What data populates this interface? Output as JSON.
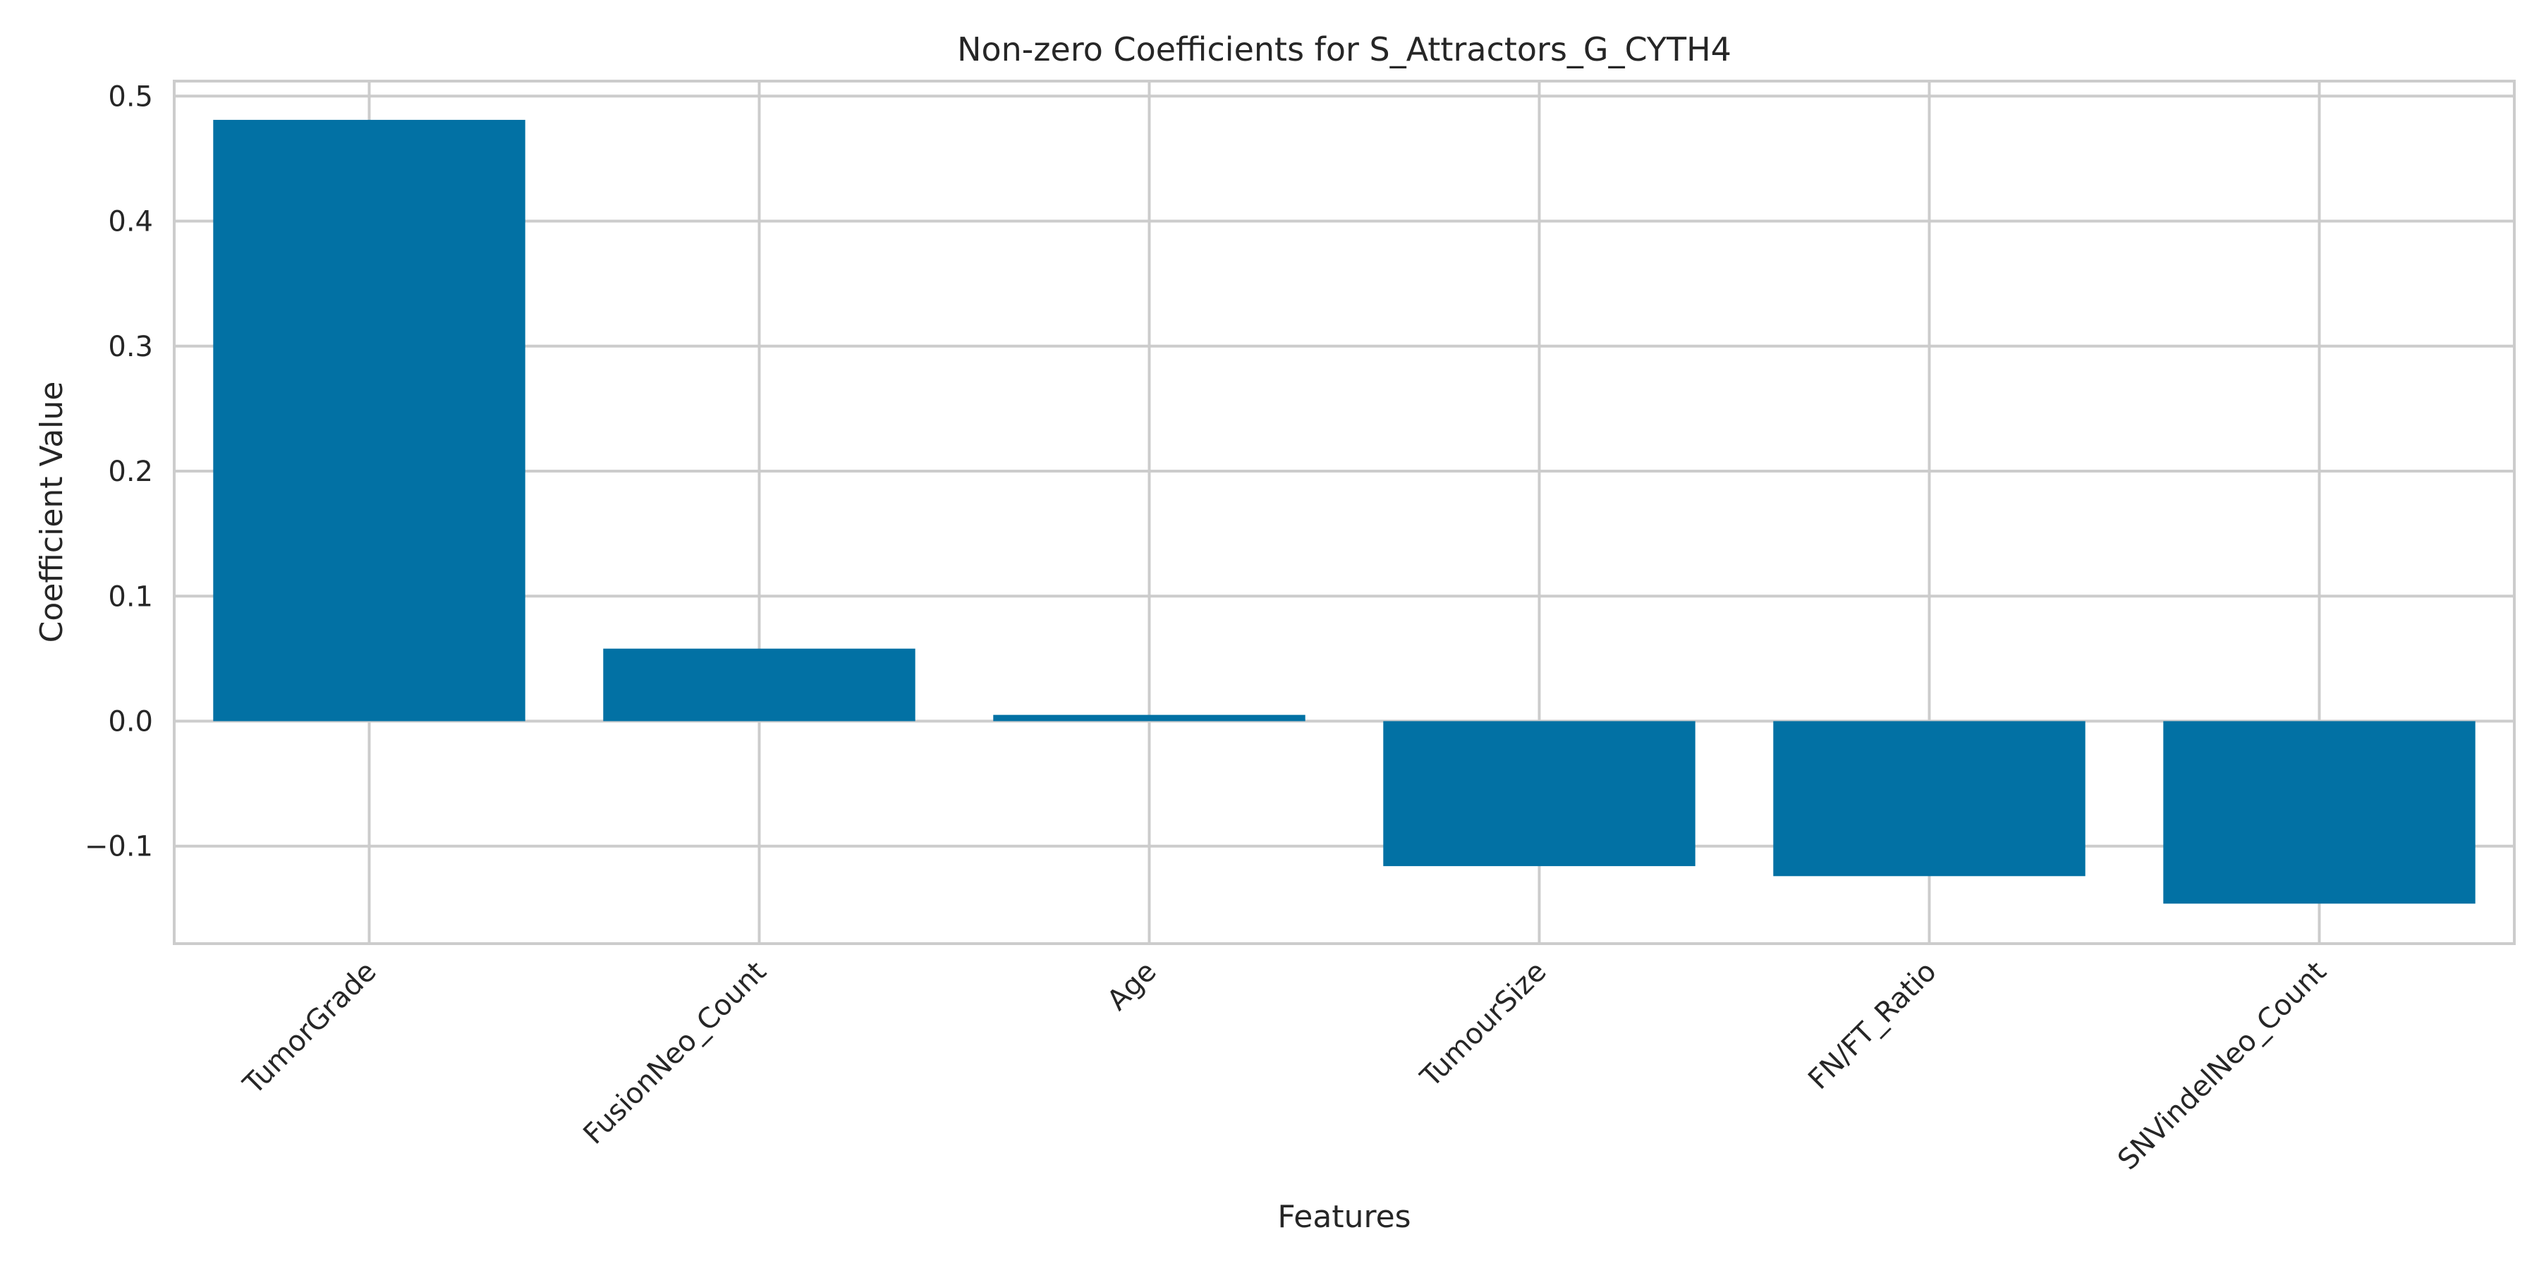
{
  "chart_data": {
    "type": "bar",
    "title": "Non-zero Coefficients for S_Attractors_G_CYTH4",
    "xlabel": "Features",
    "ylabel": "Coefficient Value",
    "categories": [
      "TumorGrade",
      "FusionNeo_Count",
      "Age",
      "TumourSize",
      "FN/FT_Ratio",
      "SNVindelNeo_Count"
    ],
    "values": [
      0.481,
      0.058,
      0.005,
      -0.116,
      -0.124,
      -0.146
    ],
    "yticks": [
      -0.1,
      0.0,
      0.1,
      0.2,
      0.3,
      0.4,
      0.5
    ],
    "ytick_labels": [
      "−0.1",
      "0.0",
      "0.1",
      "0.2",
      "0.3",
      "0.4",
      "0.5"
    ],
    "ylim": [
      -0.178,
      0.512
    ],
    "grid": true,
    "legend": "none",
    "colors": {
      "bar": "#0271A4",
      "grid": "#CCCCCC",
      "spine": "#CCCCCC",
      "background": "#FFFFFF"
    }
  }
}
